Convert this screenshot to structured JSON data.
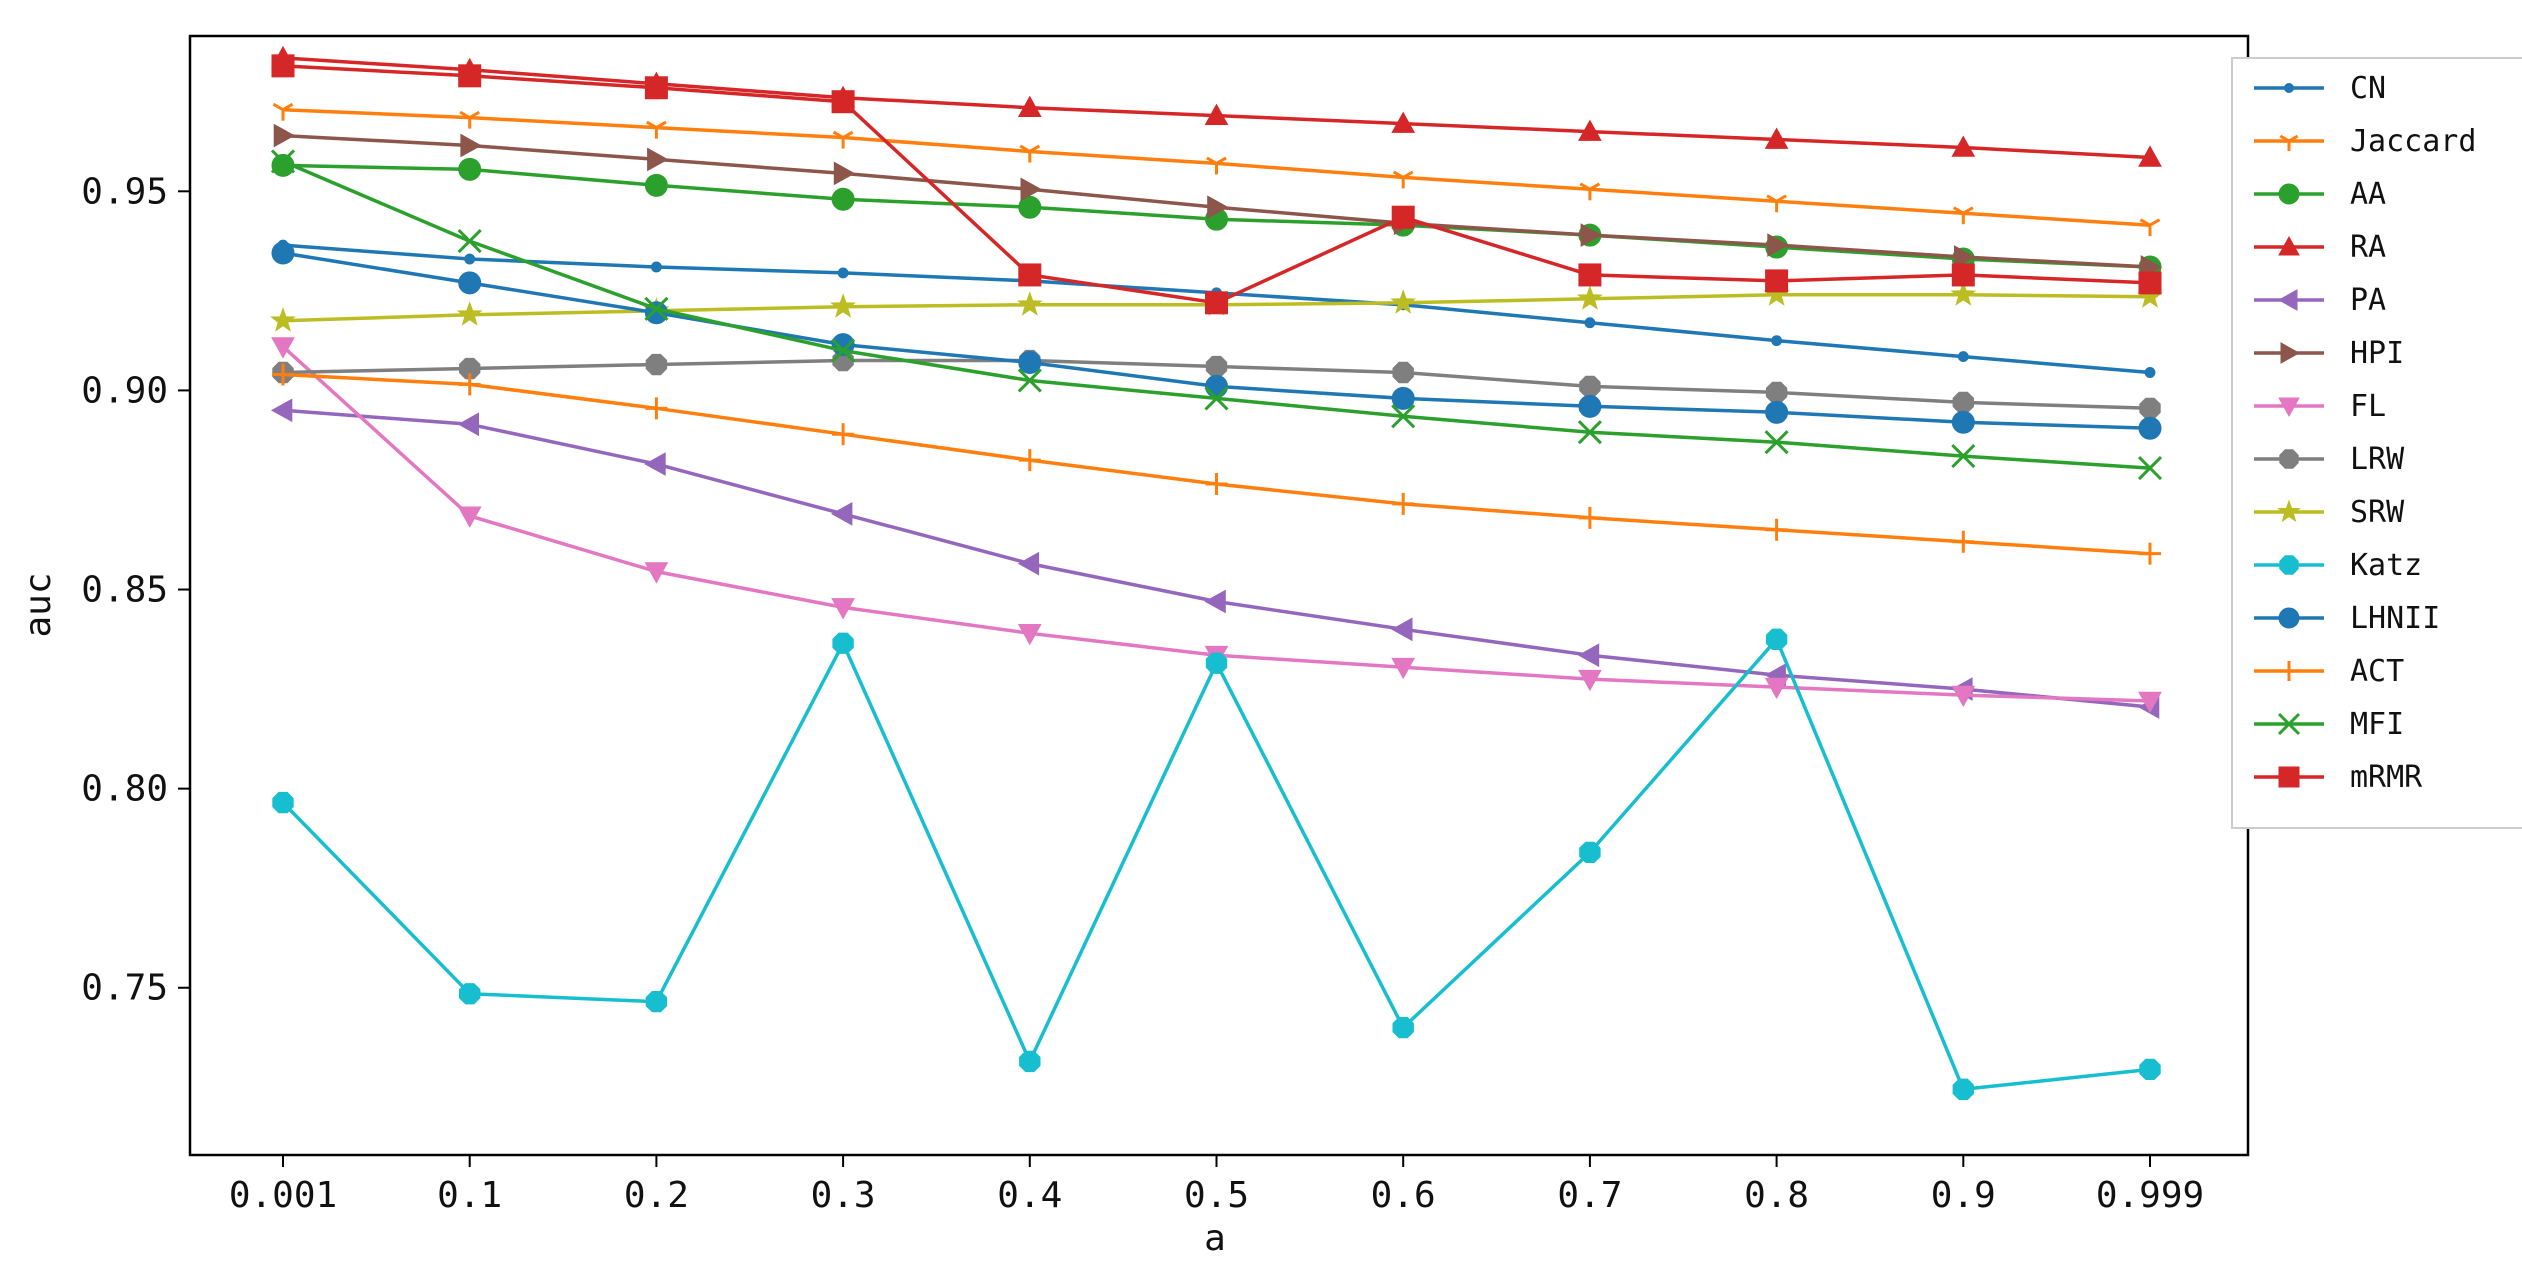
{
  "chart_data": {
    "type": "line",
    "title": "",
    "xlabel": "a",
    "ylabel": "auc",
    "categories": [
      "0.001",
      "0.1",
      "0.2",
      "0.3",
      "0.4",
      "0.5",
      "0.6",
      "0.7",
      "0.8",
      "0.9",
      "0.999"
    ],
    "ylim": [
      0.708,
      0.989
    ],
    "yticks": [
      0.75,
      0.8,
      0.85,
      0.9,
      0.95
    ],
    "ytick_labels": [
      "0.75",
      "0.80",
      "0.85",
      "0.90",
      "0.95"
    ],
    "grid": false,
    "legend_position": "outside-right-top",
    "series": [
      {
        "name": "CN",
        "color": "#1f77b4",
        "marker": "dot",
        "values": [
          0.9365,
          0.933,
          0.931,
          0.9295,
          0.9275,
          0.9245,
          0.9215,
          0.917,
          0.9125,
          0.9085,
          0.9045
        ]
      },
      {
        "name": "Jaccard",
        "color": "#ff7f0e",
        "marker": "tri_down",
        "values": [
          0.9705,
          0.9685,
          0.966,
          0.9635,
          0.96,
          0.957,
          0.9535,
          0.9505,
          0.9475,
          0.9445,
          0.9415
        ]
      },
      {
        "name": "AA",
        "color": "#2ca02c",
        "marker": "circle",
        "values": [
          0.9565,
          0.9555,
          0.9515,
          0.948,
          0.946,
          0.943,
          0.9415,
          0.939,
          0.936,
          0.933,
          0.931
        ]
      },
      {
        "name": "RA",
        "color": "#d62728",
        "marker": "triangle_up",
        "values": [
          0.9835,
          0.9805,
          0.977,
          0.9735,
          0.971,
          0.969,
          0.967,
          0.965,
          0.963,
          0.961,
          0.9585
        ]
      },
      {
        "name": "PA",
        "color": "#9467bd",
        "marker": "triangle_left",
        "values": [
          0.895,
          0.8915,
          0.8815,
          0.869,
          0.8565,
          0.847,
          0.84,
          0.8335,
          0.8285,
          0.825,
          0.8205
        ]
      },
      {
        "name": "HPI",
        "color": "#8c564b",
        "marker": "triangle_right",
        "values": [
          0.964,
          0.9615,
          0.958,
          0.9545,
          0.9505,
          0.946,
          0.942,
          0.939,
          0.9365,
          0.9335,
          0.931
        ]
      },
      {
        "name": "FL",
        "color": "#e377c2",
        "marker": "triangle_down",
        "values": [
          0.911,
          0.8685,
          0.8545,
          0.8455,
          0.839,
          0.8335,
          0.8305,
          0.8275,
          0.8255,
          0.8235,
          0.822
        ]
      },
      {
        "name": "LRW",
        "color": "#7f7f7f",
        "marker": "octagon",
        "values": [
          0.9045,
          0.9055,
          0.9065,
          0.9075,
          0.9075,
          0.906,
          0.9045,
          0.901,
          0.8995,
          0.897,
          0.8955
        ]
      },
      {
        "name": "SRW",
        "color": "#bcbd22",
        "marker": "star",
        "values": [
          0.9175,
          0.919,
          0.92,
          0.921,
          0.9215,
          0.9215,
          0.922,
          0.923,
          0.924,
          0.924,
          0.9235
        ]
      },
      {
        "name": "Katz",
        "color": "#17becf",
        "marker": "octagon",
        "values": [
          0.7965,
          0.7485,
          0.7465,
          0.8365,
          0.7315,
          0.8315,
          0.74,
          0.784,
          0.8375,
          0.7245,
          0.7295
        ]
      },
      {
        "name": "LHNII",
        "color": "#1f77b4",
        "marker": "circle",
        "values": [
          0.9345,
          0.927,
          0.9195,
          0.9115,
          0.907,
          0.901,
          0.898,
          0.896,
          0.8945,
          0.892,
          0.8905
        ]
      },
      {
        "name": "ACT",
        "color": "#ff7f0e",
        "marker": "plus",
        "values": [
          0.904,
          0.9015,
          0.8955,
          0.889,
          0.8825,
          0.8765,
          0.8715,
          0.868,
          0.865,
          0.862,
          0.859
        ]
      },
      {
        "name": "MFI",
        "color": "#2ca02c",
        "marker": "x",
        "values": [
          0.9575,
          0.9375,
          0.9205,
          0.91,
          0.9025,
          0.898,
          0.8935,
          0.8895,
          0.887,
          0.8835,
          0.8805
        ]
      },
      {
        "name": "mRMR",
        "color": "#d62728",
        "marker": "square",
        "values": [
          0.9815,
          0.979,
          0.976,
          0.9725,
          0.929,
          0.922,
          0.9435,
          0.929,
          0.9275,
          0.929,
          0.927
        ]
      }
    ]
  }
}
